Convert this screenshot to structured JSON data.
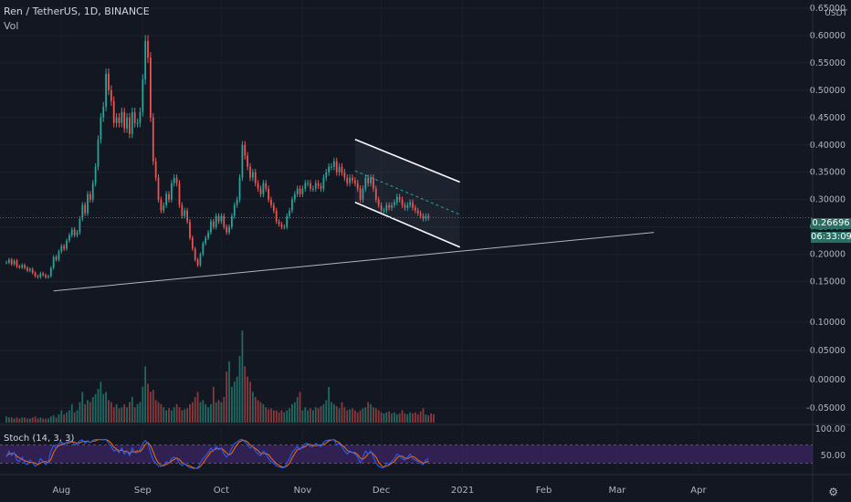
{
  "header": {
    "symbol_line": "Ren / TetherUS, 1D, BINANCE",
    "vol_label": "Vol"
  },
  "price_axis": {
    "unit": "USDT",
    "ticks": [
      "0.65000",
      "0.60000",
      "0.55000",
      "0.50000",
      "0.45000",
      "0.40000",
      "0.35000",
      "0.30000",
      "0.25000",
      "0.20000",
      "0.15000"
    ],
    "current_price": "0.26696",
    "countdown": "06:33:09"
  },
  "volume_axis": {
    "ticks": [
      "0.10000",
      "0.05000",
      "0.00000",
      "-0.05000"
    ]
  },
  "stoch": {
    "label": "Stoch (14, 3, 3)",
    "ticks": [
      "100.00",
      "50.00"
    ]
  },
  "time_axis": {
    "labels": [
      "Aug",
      "Sep",
      "Oct",
      "Nov",
      "Dec",
      "2021",
      "Feb",
      "Mar",
      "Apr"
    ]
  },
  "colors": {
    "background": "#131722",
    "up": "#26a69a",
    "down": "#ef5350",
    "volume_up": "#1f6b63",
    "volume_down": "#8a3a3c",
    "stoch_band": "#4a2a7a",
    "k_line": "#2962ff",
    "d_line": "#ff6d00",
    "price_tag": "#2a6f63"
  },
  "icons": {
    "settings": "gear-icon"
  },
  "chart_data": {
    "type": "candlestick",
    "ylim": [
      0.125,
      0.66
    ],
    "x_start_date": "2020-07-11",
    "x_label_dates": [
      "2020-08-01",
      "2020-09-01",
      "2020-10-01",
      "2020-11-01",
      "2020-12-01",
      "2021-01-01",
      "2021-02-01",
      "2021-03-01",
      "2021-04-01"
    ],
    "close": [
      0.185,
      0.19,
      0.182,
      0.188,
      0.178,
      0.176,
      0.18,
      0.175,
      0.17,
      0.173,
      0.166,
      0.16,
      0.158,
      0.165,
      0.162,
      0.158,
      0.16,
      0.175,
      0.195,
      0.19,
      0.205,
      0.215,
      0.21,
      0.225,
      0.235,
      0.245,
      0.235,
      0.24,
      0.265,
      0.29,
      0.275,
      0.31,
      0.3,
      0.33,
      0.36,
      0.41,
      0.45,
      0.47,
      0.53,
      0.5,
      0.48,
      0.44,
      0.45,
      0.44,
      0.46,
      0.43,
      0.45,
      0.42,
      0.46,
      0.44,
      0.44,
      0.46,
      0.52,
      0.59,
      0.56,
      0.45,
      0.37,
      0.34,
      0.3,
      0.28,
      0.29,
      0.31,
      0.3,
      0.33,
      0.34,
      0.33,
      0.29,
      0.27,
      0.28,
      0.26,
      0.23,
      0.21,
      0.19,
      0.18,
      0.2,
      0.22,
      0.23,
      0.24,
      0.26,
      0.25,
      0.27,
      0.26,
      0.27,
      0.25,
      0.24,
      0.25,
      0.27,
      0.29,
      0.3,
      0.34,
      0.4,
      0.38,
      0.36,
      0.34,
      0.35,
      0.33,
      0.32,
      0.31,
      0.33,
      0.32,
      0.3,
      0.29,
      0.28,
      0.26,
      0.255,
      0.25,
      0.25,
      0.27,
      0.28,
      0.3,
      0.31,
      0.32,
      0.31,
      0.32,
      0.33,
      0.33,
      0.32,
      0.32,
      0.33,
      0.325,
      0.32,
      0.34,
      0.35,
      0.36,
      0.36,
      0.37,
      0.35,
      0.36,
      0.35,
      0.34,
      0.33,
      0.34,
      0.335,
      0.33,
      0.32,
      0.3,
      0.32,
      0.34,
      0.33,
      0.34,
      0.32,
      0.3,
      0.29,
      0.28,
      0.28,
      0.29,
      0.285,
      0.29,
      0.295,
      0.305,
      0.3,
      0.29,
      0.285,
      0.29,
      0.295,
      0.285,
      0.28,
      0.275,
      0.27,
      0.265,
      0.27,
      0.266
    ],
    "price_change_pct": [
      0,
      2.7,
      -4.2,
      3.3,
      -5.3,
      -1.1,
      2.3,
      -2.8,
      -2.9,
      1.8,
      -4.0,
      -3.6,
      -1.3,
      4.4,
      -1.8,
      -2.5,
      1.3,
      9.4,
      11.4,
      -2.6,
      7.9,
      4.9,
      -2.3,
      7.1,
      4.4,
      4.3,
      -4.1,
      2.1,
      10.4,
      9.4,
      -5.2,
      12.7,
      -3.2,
      10.0,
      9.1,
      13.9,
      9.8,
      4.4,
      12.8,
      -5.7,
      -4.0,
      -8.3,
      2.3,
      -2.2,
      4.5,
      -6.5,
      4.7,
      -6.7,
      9.5,
      -4.3,
      0,
      4.5,
      13.0,
      13.5,
      -5.1,
      -19.6,
      -17.8,
      -8.1,
      -11.8,
      -6.7,
      3.6,
      6.9,
      -3.2,
      10.0,
      3.0,
      -2.9,
      -12.1,
      -6.9,
      3.7,
      -7.1,
      -11.5,
      -8.7,
      -9.5,
      -5.3,
      11.1,
      10.0,
      4.5,
      4.3,
      8.3,
      -3.8,
      8.0,
      -3.7,
      3.8,
      -7.4,
      -4.0,
      4.2,
      8.0,
      7.4,
      3.4,
      13.3,
      17.6,
      -5.0,
      -5.3,
      -5.6,
      2.9,
      -5.7,
      -3.0,
      -3.1,
      6.5,
      -3.0,
      -6.3,
      -3.3,
      -3.4,
      -7.1,
      -1.9,
      -2.0,
      0,
      8.0,
      3.7,
      7.1,
      3.3,
      3.2,
      -3.1,
      3.2,
      3.1,
      0,
      -3.0,
      0,
      3.1,
      -1.5,
      -1.5,
      6.3,
      2.9,
      2.9,
      0,
      2.8,
      -5.4,
      2.9,
      -2.8,
      -2.9,
      -2.9,
      3.0,
      -1.5,
      -1.5,
      -3.0,
      -6.3,
      6.7,
      6.3,
      -2.9,
      3.0,
      -5.9,
      -6.3,
      -3.3,
      -3.4,
      0,
      3.6,
      -1.7,
      1.8,
      1.7,
      3.4,
      -1.6,
      -3.3,
      -1.7,
      1.8,
      1.7,
      -3.4,
      -1.8,
      -1.8,
      -1.8,
      -1.9,
      1.9,
      -1.5
    ],
    "stoch_k": [
      40,
      60,
      45,
      55,
      30,
      25,
      40,
      20,
      15,
      30,
      20,
      10,
      15,
      35,
      25,
      15,
      25,
      60,
      80,
      70,
      85,
      90,
      80,
      90,
      92,
      94,
      80,
      85,
      95,
      97,
      85,
      95,
      88,
      96,
      98,
      99,
      98,
      97,
      99,
      85,
      75,
      60,
      65,
      55,
      70,
      50,
      60,
      45,
      70,
      55,
      55,
      65,
      85,
      95,
      85,
      55,
      30,
      20,
      10,
      8,
      15,
      25,
      20,
      35,
      40,
      35,
      20,
      12,
      18,
      10,
      5,
      3,
      2,
      5,
      20,
      35,
      45,
      55,
      70,
      60,
      75,
      65,
      70,
      50,
      40,
      50,
      70,
      85,
      90,
      97,
      99,
      90,
      80,
      70,
      75,
      60,
      50,
      45,
      60,
      50,
      35,
      25,
      20,
      10,
      8,
      5,
      5,
      20,
      35,
      55,
      65,
      75,
      65,
      75,
      85,
      85,
      75,
      75,
      85,
      80,
      75,
      90,
      95,
      97,
      97,
      98,
      80,
      85,
      75,
      60,
      50,
      60,
      55,
      50,
      40,
      20,
      40,
      60,
      50,
      60,
      40,
      20,
      10,
      5,
      5,
      20,
      15,
      25,
      35,
      50,
      45,
      35,
      30,
      40,
      50,
      35,
      30,
      25,
      20,
      15,
      30,
      35
    ],
    "stoch_d": [
      45,
      50,
      52,
      53,
      43,
      37,
      32,
      28,
      25,
      22,
      22,
      20,
      15,
      20,
      25,
      25,
      22,
      33,
      55,
      70,
      78,
      82,
      85,
      87,
      87,
      92,
      89,
      86,
      87,
      92,
      92,
      92,
      89,
      93,
      94,
      98,
      98,
      98,
      98,
      94,
      86,
      73,
      67,
      60,
      63,
      58,
      60,
      52,
      58,
      57,
      60,
      58,
      68,
      82,
      88,
      78,
      57,
      35,
      20,
      13,
      11,
      16,
      20,
      27,
      32,
      37,
      32,
      22,
      17,
      13,
      11,
      6,
      3,
      3,
      9,
      20,
      33,
      45,
      57,
      62,
      68,
      67,
      70,
      62,
      53,
      47,
      53,
      68,
      82,
      91,
      95,
      95,
      90,
      80,
      75,
      68,
      62,
      52,
      52,
      52,
      48,
      37,
      27,
      18,
      13,
      8,
      6,
      10,
      20,
      37,
      52,
      65,
      68,
      72,
      75,
      82,
      82,
      78,
      78,
      80,
      80,
      82,
      87,
      94,
      96,
      98,
      92,
      88,
      80,
      73,
      62,
      57,
      55,
      55,
      48,
      37,
      33,
      40,
      50,
      57,
      50,
      40,
      23,
      12,
      7,
      10,
      13,
      20,
      25,
      37,
      43,
      43,
      37,
      35,
      40,
      42,
      38,
      30,
      25,
      20,
      22,
      27
    ],
    "volume_relative": [
      0.06,
      0.05,
      0.05,
      0.04,
      0.05,
      0.04,
      0.05,
      0.05,
      0.04,
      0.04,
      0.05,
      0.06,
      0.04,
      0.05,
      0.04,
      0.04,
      0.04,
      0.06,
      0.07,
      0.05,
      0.08,
      0.12,
      0.08,
      0.1,
      0.12,
      0.18,
      0.1,
      0.12,
      0.2,
      0.3,
      0.18,
      0.22,
      0.2,
      0.25,
      0.28,
      0.33,
      0.4,
      0.28,
      0.3,
      0.22,
      0.2,
      0.15,
      0.18,
      0.14,
      0.15,
      0.18,
      0.15,
      0.2,
      0.25,
      0.15,
      0.18,
      0.2,
      0.35,
      0.55,
      0.38,
      0.3,
      0.32,
      0.22,
      0.2,
      0.18,
      0.15,
      0.12,
      0.14,
      0.12,
      0.15,
      0.18,
      0.15,
      0.12,
      0.13,
      0.14,
      0.18,
      0.2,
      0.25,
      0.3,
      0.2,
      0.22,
      0.18,
      0.15,
      0.18,
      0.35,
      0.2,
      0.22,
      0.2,
      0.25,
      0.5,
      0.6,
      0.35,
      0.4,
      0.45,
      0.65,
      0.9,
      0.55,
      0.45,
      0.4,
      0.3,
      0.25,
      0.22,
      0.2,
      0.18,
      0.15,
      0.13,
      0.14,
      0.12,
      0.12,
      0.1,
      0.12,
      0.1,
      0.12,
      0.14,
      0.18,
      0.2,
      0.25,
      0.3,
      0.12,
      0.15,
      0.12,
      0.14,
      0.12,
      0.15,
      0.14,
      0.16,
      0.18,
      0.22,
      0.35,
      0.2,
      0.18,
      0.16,
      0.14,
      0.2,
      0.15,
      0.12,
      0.13,
      0.14,
      0.12,
      0.1,
      0.12,
      0.14,
      0.15,
      0.2,
      0.18,
      0.15,
      0.14,
      0.12,
      0.1,
      0.09,
      0.1,
      0.11,
      0.09,
      0.1,
      0.08,
      0.09,
      0.12,
      0.09,
      0.08,
      0.1,
      0.09,
      0.1,
      0.08,
      0.11,
      0.14,
      0.08,
      0.07,
      0.09,
      0.08
    ],
    "trendlines": [
      {
        "name": "ascending support",
        "from": [
          "2020-07-29",
          0.133
        ],
        "to": [
          "2021-03-15",
          0.24
        ]
      },
      {
        "name": "channel upper",
        "from": [
          "2020-11-21",
          0.41
        ],
        "to": [
          "2020-12-31",
          0.332
        ]
      },
      {
        "name": "channel lower",
        "from": [
          "2020-11-21",
          0.295
        ],
        "to": [
          "2020-12-31",
          0.213
        ]
      }
    ]
  }
}
